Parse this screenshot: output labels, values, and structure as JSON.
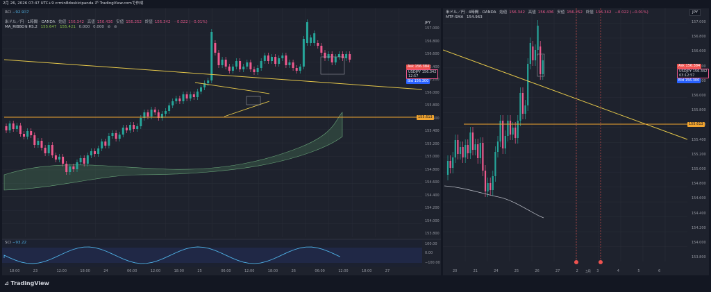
{
  "top": {
    "timestamp": "2月 26, 2026 07:47 UTC+9",
    "author": "crmin8doskicipanda が TradingView.comで作成"
  },
  "left_chart": {
    "rci_header": {
      "label": "RCI",
      "value": "−92.937"
    },
    "symbol_line": {
      "title": "米ドル／円 · 1時間 · OANDA",
      "o_label": "始値",
      "o": "156.342",
      "h_label": "高値",
      "h": "156.436",
      "l_label": "安値",
      "l": "156.252",
      "c_label": "終値",
      "c": "156.342",
      "chg": "−0.022 (−0.01%)"
    },
    "ribbon_line": {
      "label": "MA_RIBBON RS.2",
      "v1": "155.647",
      "v2": "155.421",
      "v3": "0.000",
      "v4": "0.000"
    },
    "currency": "JPY",
    "price_labels": [
      "157.000",
      "156.800",
      "156.600",
      "156.400",
      "156.200",
      "156.000",
      "155.800",
      "155.600",
      "155.400",
      "155.200",
      "155.000",
      "154.800",
      "154.600",
      "154.400",
      "154.200",
      "154.000",
      "153.800"
    ],
    "tags": {
      "ask_label": "Ask",
      "ask": "156.384",
      "last_label": "USDJPY",
      "last": "156.342",
      "countdown": "12:57",
      "bid_label": "Bid",
      "bid": "156.300",
      "level": "155.613"
    },
    "sci_header": {
      "label": "SCI",
      "value": "−93.22"
    },
    "sci_scale": [
      "100.00",
      "0.00",
      "−100.00"
    ],
    "time_labels": [
      "18:00",
      "23",
      "12:00",
      "18:00",
      "24",
      "06:00",
      "12:00",
      "18:00",
      "25",
      "06:00",
      "12:00",
      "18:00",
      "26",
      "06:00",
      "12:00",
      "18:00",
      "27"
    ]
  },
  "right_chart": {
    "symbol_line": {
      "title": "米ドル／円 · 4時間 · OANDA",
      "o_label": "始値",
      "o": "156.342",
      "h_label": "高値",
      "h": "156.436",
      "l_label": "安値",
      "l": "156.252",
      "c_label": "終値",
      "c": "156.342",
      "chg": "−0.022 (−0.01%)"
    },
    "mtf_line": {
      "label": "MTF-SMA",
      "value": "154.963"
    },
    "currency": "JPY",
    "price_labels": [
      "157.000",
      "156.800",
      "156.600",
      "156.400",
      "156.200",
      "156.000",
      "155.800",
      "155.600",
      "155.400",
      "155.200",
      "155.000",
      "154.800",
      "154.600",
      "154.400",
      "154.200",
      "154.000",
      "153.800"
    ],
    "tags": {
      "ask_label": "Ask",
      "ask": "156.384",
      "last_label": "USDJPY",
      "last": "156.342",
      "countdown": "03:12:57",
      "bid_label": "Bid",
      "bid": "156.300",
      "level": "155.613"
    },
    "time_labels": [
      "20",
      "21",
      "24",
      "25",
      "26",
      "27",
      "2",
      "3",
      "4",
      "5",
      "6"
    ],
    "month_label": "3月"
  },
  "footer": {
    "brand": "TradingView"
  },
  "colors": {
    "bg": "#131722",
    "pane": "#1e222d",
    "up": "#26a69a",
    "down": "#ef5a8e",
    "trend": "#e6c84a",
    "level": "#f2a530"
  }
}
